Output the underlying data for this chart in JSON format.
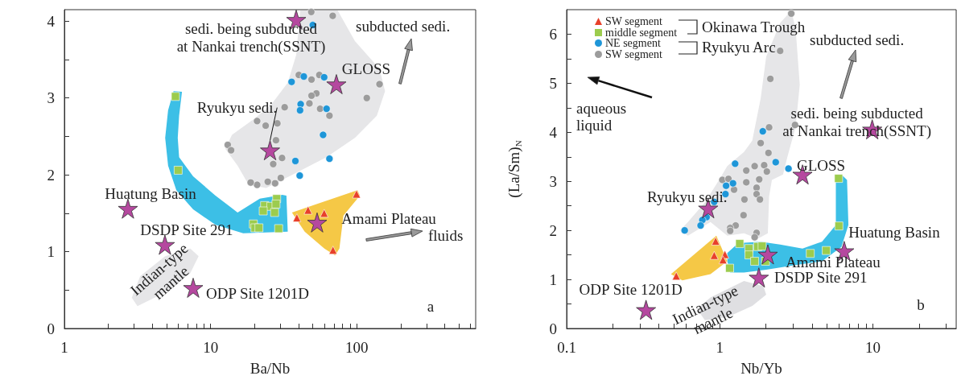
{
  "chart_data": [
    {
      "type": "scatter",
      "xlabel": "Ba/Nb",
      "log": "x",
      "xlim": [
        1,
        650
      ],
      "ylim": [
        0,
        4.15
      ],
      "xticks": [
        1,
        {
          "value": 2,
          "label": null
        },
        {
          "value": 3,
          "label": null
        },
        {
          "value": 4,
          "label": null
        },
        {
          "value": 5,
          "label": null
        },
        {
          "value": 6,
          "label": null
        },
        {
          "value": 7,
          "label": null
        },
        {
          "value": 8,
          "label": null
        },
        {
          "value": 9,
          "label": null
        },
        10,
        {
          "value": 20,
          "label": null
        },
        {
          "value": 30,
          "label": null
        },
        {
          "value": 40,
          "label": null
        },
        {
          "value": 50,
          "label": null
        },
        {
          "value": 60,
          "label": null
        },
        {
          "value": 70,
          "label": null
        },
        {
          "value": 80,
          "label": null
        },
        {
          "value": 90,
          "label": null
        },
        100,
        {
          "value": 200,
          "label": null
        },
        {
          "value": 300,
          "label": null
        },
        {
          "value": 400,
          "label": null
        },
        {
          "value": 500,
          "label": null
        },
        {
          "value": 600,
          "label": null
        }
      ],
      "yticks": [
        0,
        {
          "value": 0.5,
          "label": null
        },
        1,
        {
          "value": 1.5,
          "label": null
        },
        2,
        {
          "value": 2.5,
          "label": null
        },
        3,
        {
          "value": 3.5,
          "label": null
        },
        4
      ],
      "annotations": [
        "subducted sedi.",
        "fluids",
        "a"
      ],
      "series": [
        {
          "type": "area",
          "color": "#e6e6e8",
          "x": [
            41,
            74,
            97,
            143,
            156,
            137,
            97,
            62,
            37,
            24,
            18.2,
            15.3,
            12.6,
            14.0,
            19.9,
            25.9,
            33.7,
            38.5
          ],
          "values": [
            4.14,
            4.14,
            3.74,
            3.38,
            3.09,
            2.77,
            2.48,
            2.23,
            2.01,
            1.83,
            1.87,
            2.12,
            2.34,
            2.52,
            2.73,
            2.91,
            3.2,
            3.56
          ]
        },
        {
          "type": "area",
          "color": "#3cbfe6",
          "x": [
            5.58,
            6.37,
            6.09,
            5.96,
            6.09,
            7.59,
            10.8,
            15.3,
            21.7,
            30.9,
            33.0,
            33.7,
            16.7,
            10.8,
            7.59,
            5.83,
            5.12,
            4.89,
            5.12
          ],
          "values": [
            3.09,
            3.08,
            2.77,
            2.48,
            2.23,
            1.98,
            1.73,
            1.51,
            1.69,
            1.74,
            1.73,
            1.26,
            1.24,
            1.35,
            1.55,
            1.8,
            2.12,
            2.48,
            2.84
          ]
        },
        {
          "type": "area",
          "color": "#f5c846",
          "x": [
            36,
            101,
            105,
            81,
            76,
            71,
            60,
            44
          ],
          "values": [
            1.51,
            1.8,
            1.73,
            1.47,
            1.04,
            0.95,
            1.04,
            1.26
          ]
        },
        {
          "type": "area",
          "name": "Indian-type\nmantle",
          "color": "#e6e6e8",
          "x": [
            2.89,
            3.3,
            4.89,
            7.26,
            8.28,
            7.26,
            4.89,
            3.16
          ],
          "values": [
            0.4,
            0.68,
            0.94,
            1.04,
            0.94,
            0.72,
            0.47,
            0.29
          ]
        },
        {
          "type": "scatter",
          "marker": "circle",
          "color": "#9c9c9c",
          "x": [
            48.8,
            68.4,
            40.1,
            49,
            55.4,
            52.9,
            49,
            47.4,
            56.1,
            65.0,
            143,
            117,
            20.8,
            23.8,
            28.6,
            28.0,
            13.1,
            13.8,
            30.8,
            26.8,
            30.2,
            27.6,
            24.6,
            20.8,
            18.8,
            32.1
          ],
          "values": [
            4.12,
            4.07,
            3.3,
            3.24,
            3.3,
            3.06,
            3.03,
            2.93,
            2.86,
            2.77,
            3.18,
            3.0,
            2.7,
            2.64,
            2.67,
            2.45,
            2.39,
            2.32,
            2.22,
            2.14,
            1.96,
            1.89,
            1.91,
            1.87,
            1.9,
            2.88
          ]
        },
        {
          "type": "scatter",
          "marker": "circle",
          "color": "#1e96d8",
          "x": [
            50,
            35.8,
            43.4,
            59.8,
            41.3,
            40.9,
            62.1,
            58.8,
            38.0,
            65.0,
            40.7
          ],
          "values": [
            3.95,
            3.21,
            3.28,
            3.27,
            2.92,
            2.84,
            2.86,
            2.52,
            2.18,
            2.21,
            1.99
          ]
        },
        {
          "type": "scatter",
          "marker": "square",
          "color": "#9ccc4e",
          "x": [
            5.75,
            6.0,
            28.3,
            23.4,
            25.8,
            28.0,
            22.9,
            27.4,
            19.6,
            20.1,
            21.4,
            29.2
          ],
          "values": [
            3.02,
            2.06,
            1.69,
            1.6,
            1.59,
            1.62,
            1.53,
            1.51,
            1.36,
            1.31,
            1.31,
            1.3
          ]
        },
        {
          "type": "scatter",
          "marker": "triangle",
          "color": "#e8402a",
          "x": [
            99.5,
            46.4,
            59.8,
            38.9,
            68.7
          ],
          "values": [
            1.75,
            1.54,
            1.5,
            1.44,
            1.02
          ]
        },
        {
          "type": "scatter",
          "marker": "star",
          "color": "#b5489f",
          "x": [
            38.5,
            72.5,
            25.5,
            2.72,
            4.87,
            7.6,
            53.5
          ],
          "values": [
            4.02,
            3.18,
            2.32,
            1.56,
            1.09,
            0.53,
            1.38
          ],
          "value_labels": [
            "sedi. being subducted\nat Nankai trench(SSNT)",
            "GLOSS",
            "Ryukyu sedi.",
            "Huatung Basin",
            "DSDP Site 291",
            "ODP Site 1201D",
            "Amami Plateau"
          ]
        }
      ]
    },
    {
      "type": "scatter",
      "xlabel": "Nb/Yb",
      "ylabel": "(La/Sm)$_{N}$",
      "log": "x",
      "xlim": [
        0.1,
        35
      ],
      "ylim": [
        0,
        6.5
      ],
      "legend": "top left",
      "xticks": [
        0.1,
        {
          "value": 0.2,
          "label": null
        },
        {
          "value": 0.3,
          "label": null
        },
        {
          "value": 0.4,
          "label": null
        },
        {
          "value": 0.5,
          "label": null
        },
        {
          "value": 0.6,
          "label": null
        },
        {
          "value": 0.7,
          "label": null
        },
        {
          "value": 0.8,
          "label": null
        },
        {
          "value": 0.9,
          "label": null
        },
        1,
        {
          "value": 2,
          "label": null
        },
        {
          "value": 3,
          "label": null
        },
        {
          "value": 4,
          "label": null
        },
        {
          "value": 5,
          "label": null
        },
        {
          "value": 6,
          "label": null
        },
        {
          "value": 7,
          "label": null
        },
        {
          "value": 8,
          "label": null
        },
        {
          "value": 9,
          "label": null
        },
        10,
        {
          "value": 20,
          "label": null
        },
        {
          "value": 30,
          "label": null
        }
      ],
      "yticks": [
        0,
        {
          "value": 0.5,
          "label": null
        },
        1,
        {
          "value": 1.5,
          "label": null
        },
        2,
        {
          "value": 2.5,
          "label": null
        },
        3,
        {
          "value": 3.5,
          "label": null
        },
        4,
        {
          "value": 4.5,
          "label": null
        },
        5,
        {
          "value": 5.5,
          "label": null
        },
        6
      ],
      "annotations": [
        "Okinawa Trough",
        "Ryukyu Arc",
        "aqueous\nliquid",
        "subducted sedi.",
        "b"
      ],
      "series": [
        {
          "type": "area",
          "color": "#e6e6e8",
          "x": [
            2.93,
            3.13,
            3.33,
            3.13,
            2.76,
            2.59,
            2.19,
            2.1,
            2.06,
            1.77,
            1.44,
            1.12,
            0.87,
            0.62,
            0.55,
            0.62,
            0.8,
            0.99,
            1.12,
            1.44,
            1.63,
            1.85,
            2.01,
            2.48
          ],
          "values": [
            6.48,
            6.11,
            4.97,
            4.11,
            3.49,
            3.14,
            3.03,
            2.69,
            1.94,
            1.83,
            1.94,
            1.89,
            2.17,
            1.89,
            2.0,
            2.17,
            2.57,
            3.03,
            3.31,
            3.6,
            3.83,
            4.69,
            5.54,
            6.23
          ]
        },
        {
          "type": "area",
          "color": "#3cbfe6",
          "x": [
            1.12,
            1.32,
            1.85,
            2.48,
            3.47,
            4.65,
            5.73,
            5.73,
            6.23,
            6.78,
            6.92,
            6.23,
            4.65,
            3.06,
            2.01,
            1.44,
            1.17,
            1.12
          ],
          "values": [
            1.54,
            1.74,
            1.77,
            1.71,
            1.63,
            1.77,
            2.11,
            3.03,
            3.14,
            3.03,
            2.11,
            1.66,
            1.37,
            1.29,
            1.2,
            1.14,
            1.14,
            1.37
          ]
        },
        {
          "type": "area",
          "color": "#f5c846",
          "x": [
            0.48,
            0.95,
            1.12,
            0.87,
            0.57
          ],
          "values": [
            1.11,
            1.89,
            1.37,
            1.11,
            0.98
          ]
        },
        {
          "type": "area",
          "name": "Indian-type\nmantle",
          "color": "#dfdfe2",
          "x": [
            0.71,
            0.87,
            1.44,
            1.93,
            2.01,
            1.63,
            1.12,
            0.8
          ],
          "values": [
            0.4,
            0.63,
            0.97,
            0.86,
            0.69,
            0.46,
            0.23,
            0.17
          ]
        },
        {
          "type": "scatter",
          "name": "SW segment",
          "marker": "circle",
          "color": "#9c9c9c",
          "x": [
            2.93,
            2.48,
            2.14,
            2.1,
            3.1,
            1.85,
            2.08,
            1.95,
            1.69,
            1.49,
            2.03,
            1.81,
            1.49,
            1.04,
            1.14,
            1.74,
            1.24,
            1.74,
            1.83,
            1.45,
            1.43,
            1.27,
            1.17,
            1.17,
            1.74,
            1.69
          ],
          "values": [
            6.42,
            5.66,
            5.09,
            4.1,
            4.15,
            3.78,
            3.58,
            3.33,
            3.31,
            3.22,
            3.2,
            3.04,
            2.98,
            3.03,
            3.05,
            2.87,
            2.83,
            2.74,
            2.63,
            2.63,
            2.31,
            2.1,
            2.05,
            1.99,
            1.95,
            1.86
          ]
        },
        {
          "type": "scatter",
          "name": "NE segment",
          "marker": "circle",
          "color": "#1e96d8",
          "x": [
            1.91,
            1.26,
            2.32,
            2.81,
            1.22,
            1.1,
            1.09,
            0.92,
            0.82,
            0.77,
            0.75,
            0.59
          ],
          "values": [
            4.02,
            3.36,
            3.39,
            3.26,
            2.96,
            2.91,
            2.74,
            2.58,
            2.27,
            2.21,
            2.1,
            2.0
          ]
        },
        {
          "type": "scatter",
          "name": "middle segment",
          "marker": "square",
          "color": "#9ccc4e",
          "x": [
            5.97,
            6.0,
            4.96,
            3.9,
            1.35,
            1.55,
            1.55,
            1.77,
            1.89,
            1.69,
            1.99,
            1.16
          ],
          "values": [
            3.06,
            2.09,
            1.59,
            1.53,
            1.73,
            1.63,
            1.5,
            1.67,
            1.68,
            1.37,
            1.37,
            1.23
          ]
        },
        {
          "type": "scatter",
          "name": "SW segment",
          "marker": "triangle",
          "color": "#e8402a",
          "x": [
            0.52,
            0.94,
            0.92,
            1.08,
            1.05
          ],
          "values": [
            1.07,
            1.78,
            1.49,
            1.51,
            1.4
          ]
        },
        {
          "type": "scatter",
          "marker": "star",
          "color": "#b5489f",
          "x": [
            9.9,
            3.47,
            0.84,
            2.06,
            6.5,
            1.8,
            0.33
          ],
          "values": [
            4.06,
            3.14,
            2.45,
            1.51,
            1.58,
            1.04,
            0.38
          ],
          "value_labels": [
            "sedi. being subducted\nat Nankai trench(SSNT)",
            "GLOSS",
            "Ryukyu sedi.",
            "Amami Plateau",
            "Huatung Basin",
            "DSDP Site 291",
            "ODP Site 1201D"
          ]
        }
      ]
    }
  ]
}
